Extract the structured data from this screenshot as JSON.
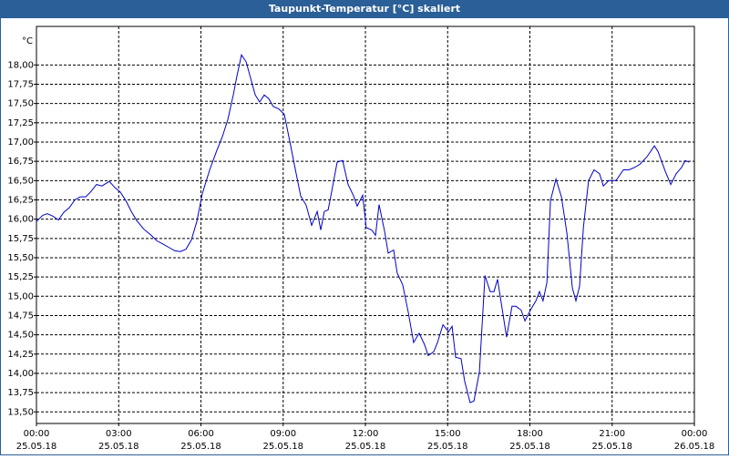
{
  "chart_data": {
    "type": "line",
    "title": "Taupunkt-Temperatur [°C] skaliert",
    "y_unit": "°C",
    "x": [
      0,
      0.23,
      0.4,
      0.6,
      0.8,
      1.0,
      1.2,
      1.4,
      1.6,
      1.8,
      1.99,
      2.19,
      2.39,
      2.66,
      2.86,
      3.06,
      3.26,
      3.46,
      3.66,
      3.92,
      4.19,
      4.39,
      4.65,
      4.85,
      5.05,
      5.25,
      5.45,
      5.65,
      5.85,
      6.05,
      6.32,
      6.58,
      6.78,
      6.98,
      7.18,
      7.31,
      7.48,
      7.65,
      7.81,
      7.98,
      8.14,
      8.31,
      8.48,
      8.64,
      8.84,
      9.04,
      9.24,
      9.44,
      9.64,
      9.84,
      10.04,
      10.24,
      10.37,
      10.5,
      10.64,
      10.77,
      10.97,
      11.17,
      11.37,
      11.57,
      11.7,
      11.9,
      12.03,
      12.23,
      12.37,
      12.5,
      12.7,
      12.83,
      13.03,
      13.16,
      13.36,
      13.56,
      13.76,
      13.96,
      14.16,
      14.29,
      14.49,
      14.63,
      14.83,
      15.03,
      15.16,
      15.29,
      15.49,
      15.62,
      15.82,
      15.96,
      16.16,
      16.36,
      16.55,
      16.69,
      16.82,
      17.15,
      17.35,
      17.49,
      17.68,
      17.82,
      18.02,
      18.22,
      18.35,
      18.48,
      18.62,
      18.75,
      18.95,
      19.15,
      19.35,
      19.55,
      19.68,
      19.81,
      19.95,
      20.14,
      20.34,
      20.54,
      20.68,
      20.88,
      21.14,
      21.41,
      21.61,
      21.81,
      22.01,
      22.27,
      22.54,
      22.67,
      22.94,
      23.14,
      23.34,
      23.53,
      23.67,
      23.8
    ],
    "values": [
      15.97,
      16.05,
      16.07,
      16.04,
      15.99,
      16.09,
      16.15,
      16.25,
      16.29,
      16.29,
      16.36,
      16.45,
      16.43,
      16.49,
      16.41,
      16.35,
      16.24,
      16.1,
      15.98,
      15.87,
      15.79,
      15.72,
      15.67,
      15.63,
      15.59,
      15.58,
      15.61,
      15.73,
      15.97,
      16.33,
      16.64,
      16.89,
      17.07,
      17.29,
      17.61,
      17.85,
      18.13,
      18.04,
      17.83,
      17.61,
      17.52,
      17.61,
      17.56,
      17.46,
      17.43,
      17.36,
      17.01,
      16.65,
      16.3,
      16.18,
      15.92,
      16.1,
      15.86,
      16.1,
      16.12,
      16.36,
      16.74,
      16.76,
      16.45,
      16.3,
      16.17,
      16.31,
      15.89,
      15.86,
      15.79,
      16.19,
      15.84,
      15.56,
      15.6,
      15.3,
      15.15,
      14.8,
      14.4,
      14.52,
      14.37,
      14.23,
      14.28,
      14.4,
      14.63,
      14.54,
      14.61,
      14.21,
      14.19,
      13.9,
      13.62,
      13.64,
      14.02,
      15.27,
      15.06,
      15.06,
      15.22,
      14.47,
      14.87,
      14.87,
      14.82,
      14.68,
      14.82,
      14.94,
      15.06,
      14.94,
      15.18,
      16.24,
      16.52,
      16.29,
      15.82,
      15.11,
      14.94,
      15.13,
      15.89,
      16.5,
      16.64,
      16.59,
      16.43,
      16.5,
      16.5,
      16.64,
      16.64,
      16.67,
      16.71,
      16.81,
      16.95,
      16.88,
      16.62,
      16.45,
      16.59,
      16.67,
      16.76,
      16.74
    ],
    "color": "#0000c8",
    "xlim": [
      0,
      24
    ],
    "xticks": [
      {
        "value": 0,
        "label": "00:00",
        "date": "25.05.18"
      },
      {
        "value": 3,
        "label": "03:00",
        "date": "25.05.18"
      },
      {
        "value": 6,
        "label": "06:00",
        "date": "25.05.18"
      },
      {
        "value": 9,
        "label": "09:00",
        "date": "25.05.18"
      },
      {
        "value": 12,
        "label": "12:00",
        "date": "25.05.18"
      },
      {
        "value": 15,
        "label": "15:00",
        "date": "25.05.18"
      },
      {
        "value": 18,
        "label": "18:00",
        "date": "25.05.18"
      },
      {
        "value": 21,
        "label": "21:00",
        "date": "25.05.18"
      },
      {
        "value": 24,
        "label": "00:00",
        "date": "26.05.18"
      }
    ],
    "ylim": [
      13.35,
      18.5
    ],
    "yticks": [
      {
        "value": 13.5,
        "label": "13,50"
      },
      {
        "value": 13.75,
        "label": "13,75"
      },
      {
        "value": 14,
        "label": "14,00"
      },
      {
        "value": 14.25,
        "label": "14,25"
      },
      {
        "value": 14.5,
        "label": "14,50"
      },
      {
        "value": 14.75,
        "label": "14,75"
      },
      {
        "value": 15,
        "label": "15,00"
      },
      {
        "value": 15.25,
        "label": "15,25"
      },
      {
        "value": 15.5,
        "label": "15,50"
      },
      {
        "value": 15.75,
        "label": "15,75"
      },
      {
        "value": 16,
        "label": "16,00"
      },
      {
        "value": 16.25,
        "label": "16,25"
      },
      {
        "value": 16.5,
        "label": "16,50"
      },
      {
        "value": 16.75,
        "label": "16,75"
      },
      {
        "value": 17,
        "label": "17,00"
      },
      {
        "value": 17.25,
        "label": "17,25"
      },
      {
        "value": 17.5,
        "label": "17,50"
      },
      {
        "value": 17.75,
        "label": "17,75"
      },
      {
        "value": 18,
        "label": "18,00"
      }
    ],
    "grid": true
  }
}
